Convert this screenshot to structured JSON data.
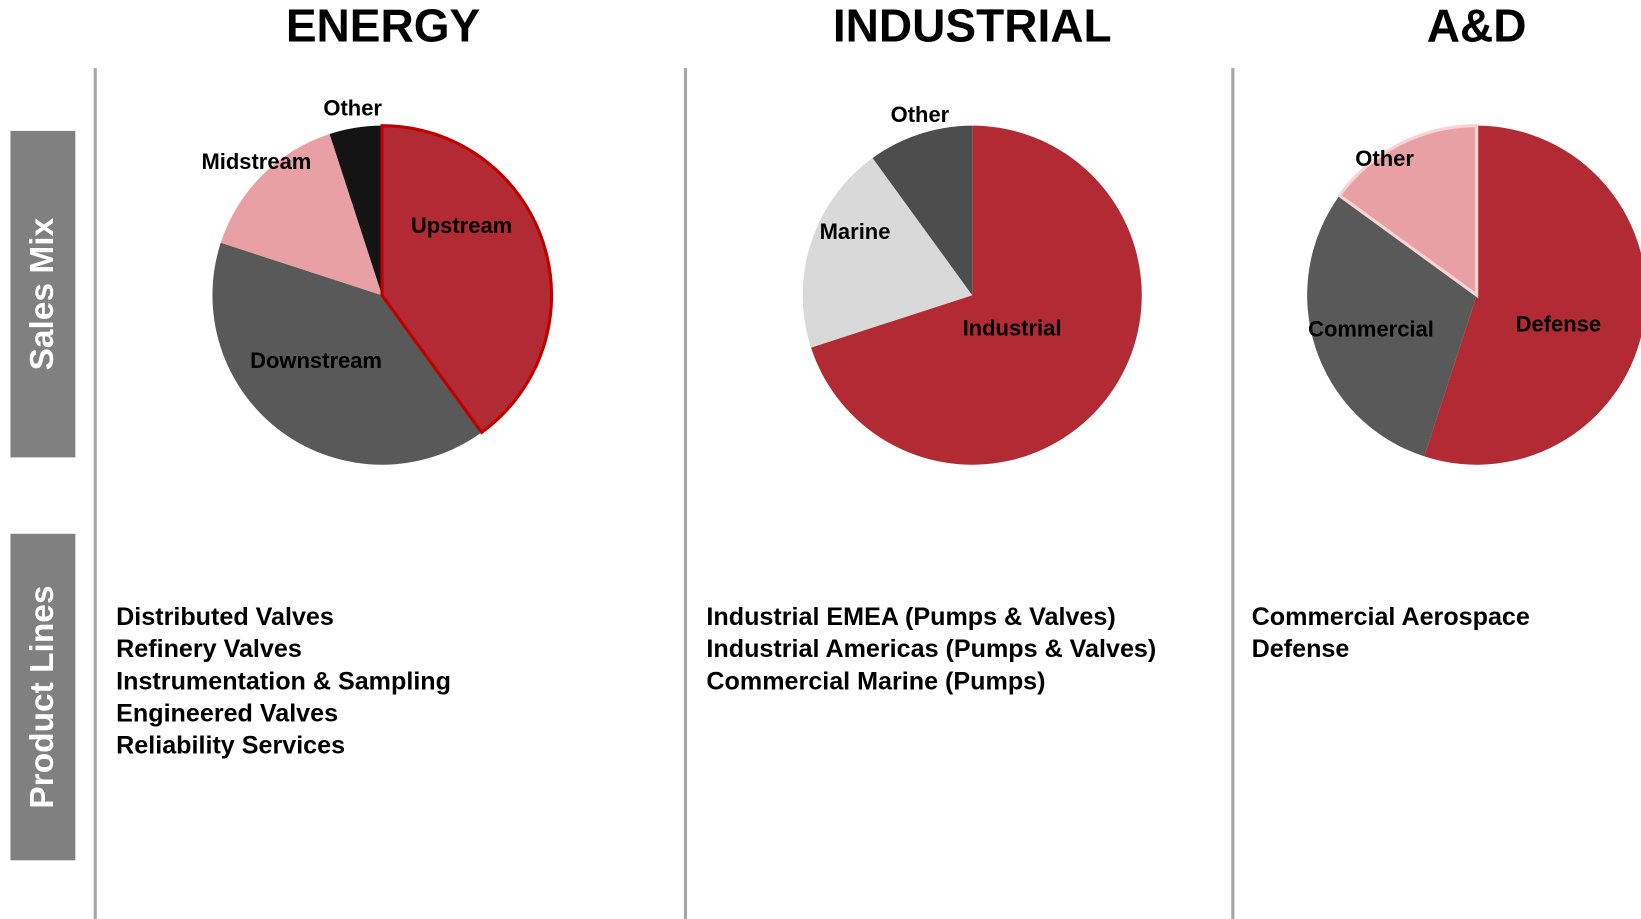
{
  "side_labels": [
    "Sales Mix",
    "Product Lines"
  ],
  "chart_data": [
    {
      "type": "pie",
      "title": "ENERGY",
      "categories": [
        "Upstream",
        "Downstream",
        "Midstream",
        "Other"
      ],
      "values": [
        40,
        40,
        15,
        5
      ],
      "colors": [
        "#b22a33",
        "#595959",
        "#e8a0a4",
        "#141414"
      ]
    },
    {
      "type": "pie",
      "title": "INDUSTRIAL",
      "categories": [
        "Industrial",
        "Marine",
        "Other"
      ],
      "values": [
        70,
        20,
        10
      ],
      "colors": [
        "#b22a33",
        "#d9d9d9",
        "#4d4d4d"
      ]
    },
    {
      "type": "pie",
      "title": "A&D",
      "categories": [
        "Defense",
        "Commercial",
        "Other"
      ],
      "values": [
        55,
        30,
        15
      ],
      "colors": [
        "#b22a33",
        "#595959",
        "#e8a0a4"
      ]
    }
  ],
  "product_lines": [
    [
      "Distributed Valves",
      "Refinery Valves",
      "Instrumentation & Sampling",
      "Engineered Valves",
      "Reliability Services"
    ],
    [
      "Industrial EMEA (Pumps & Valves)",
      "Industrial Americas (Pumps & Valves)",
      "Commercial Marine (Pumps)"
    ],
    [
      "Commercial Aerospace",
      "Defense"
    ]
  ]
}
